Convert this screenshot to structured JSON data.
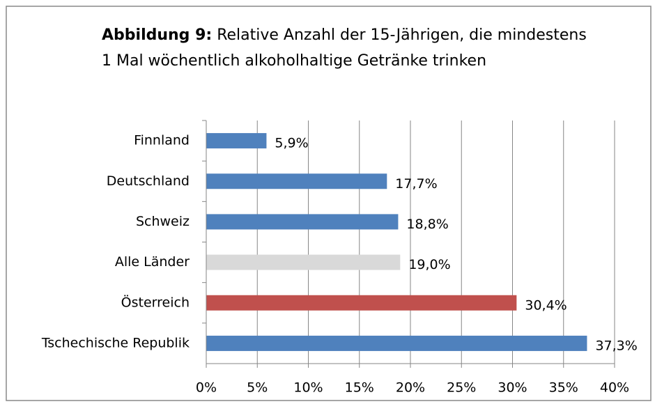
{
  "chart_data": {
    "type": "barh",
    "title_prefix": "Abbildung 9:",
    "title": "Relative Anzahl der 15-Jährigen, die mindestens 1 Mal wöchentlich alkoholhaltige Getränke trinken",
    "categories": [
      "Finnland",
      "Deutschland",
      "Schweiz",
      "Alle Länder",
      "Österreich",
      "Tschechische Republik"
    ],
    "values": [
      5.9,
      17.7,
      18.8,
      19.0,
      30.4,
      37.3
    ],
    "value_labels": [
      "5,9%",
      "17,7%",
      "18,8%",
      "19,0%",
      "30,4%",
      "37,3%"
    ],
    "colors": [
      "#4f81bd",
      "#4f81bd",
      "#4f81bd",
      "#d9d9d9",
      "#c0504d",
      "#4f81bd"
    ],
    "xlim": [
      0,
      40
    ],
    "xticks": [
      {
        "value": 0,
        "label": "0%"
      },
      {
        "value": 5,
        "label": "5%"
      },
      {
        "value": 10,
        "label": "10%"
      },
      {
        "value": 15,
        "label": "15%"
      },
      {
        "value": 20,
        "label": "20%"
      },
      {
        "value": 25,
        "label": "25%"
      },
      {
        "value": 30,
        "label": "30%"
      },
      {
        "value": 35,
        "label": "35%"
      },
      {
        "value": 40,
        "label": "40%"
      }
    ],
    "grid": true
  }
}
